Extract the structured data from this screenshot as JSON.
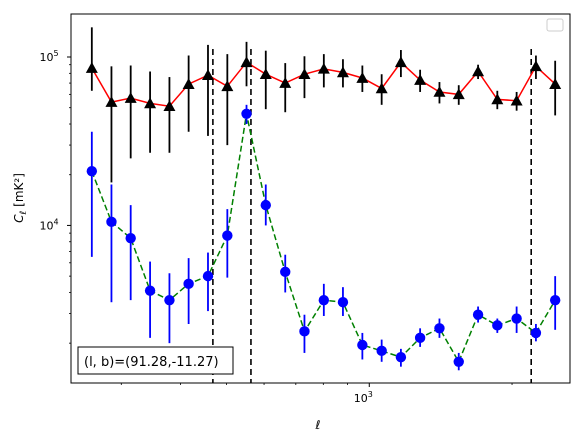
{
  "chart_data": {
    "type": "scatter",
    "xscale": "log",
    "yscale": "log",
    "xlabel": "ℓ",
    "ylabel_main": "C",
    "ylabel_sub": "ℓ",
    "ylabel_unit": "[mK²]",
    "xlim": [
      235,
      2650
    ],
    "ylim": [
      1160,
      180000
    ],
    "x_ticks": [
      {
        "value": 1000,
        "base": "10",
        "exp": "3"
      }
    ],
    "y_ticks": [
      {
        "value": 10000,
        "base": "10",
        "exp": "4"
      },
      {
        "value": 100000,
        "base": "10",
        "exp": "5"
      }
    ],
    "grid": false,
    "legend": {
      "placement": "top-right",
      "entries": []
    },
    "annotation": "(l, b)=(91.28,-11.27)",
    "vlines": [
      {
        "x": 468,
        "style": "dashed",
        "color": "#000000"
      },
      {
        "x": 563,
        "style": "dashed",
        "color": "#000000"
      },
      {
        "x": 2195,
        "style": "dashed",
        "color": "#000000"
      }
    ],
    "series": [
      {
        "line_color": "#ff0000",
        "line_style": "solid",
        "marker": "triangle",
        "marker_color": "#000000",
        "error_color": "#000000",
        "points": [
          {
            "x": 260,
            "y": 86000,
            "lo": 63000,
            "hi": 150000
          },
          {
            "x": 286,
            "y": 54000,
            "lo": 18000,
            "hi": 88000
          },
          {
            "x": 314,
            "y": 57000,
            "lo": 25000,
            "hi": 89000
          },
          {
            "x": 345,
            "y": 53000,
            "lo": 27000,
            "hi": 82000
          },
          {
            "x": 379,
            "y": 51000,
            "lo": 27000,
            "hi": 76000
          },
          {
            "x": 416,
            "y": 69000,
            "lo": 36000,
            "hi": 102000
          },
          {
            "x": 457,
            "y": 78000,
            "lo": 34000,
            "hi": 118000
          },
          {
            "x": 502,
            "y": 67000,
            "lo": 30000,
            "hi": 104000
          },
          {
            "x": 551,
            "y": 93000,
            "lo": 67000,
            "hi": 123000
          },
          {
            "x": 605,
            "y": 79000,
            "lo": 49000,
            "hi": 109000
          },
          {
            "x": 665,
            "y": 70000,
            "lo": 47000,
            "hi": 92000
          },
          {
            "x": 730,
            "y": 79000,
            "lo": 57000,
            "hi": 101000
          },
          {
            "x": 802,
            "y": 85000,
            "lo": 66000,
            "hi": 104000
          },
          {
            "x": 880,
            "y": 81000,
            "lo": 66000,
            "hi": 97000
          },
          {
            "x": 967,
            "y": 75000,
            "lo": 62000,
            "hi": 89000
          },
          {
            "x": 1062,
            "y": 65000,
            "lo": 52000,
            "hi": 79000
          },
          {
            "x": 1166,
            "y": 93000,
            "lo": 76000,
            "hi": 110000
          },
          {
            "x": 1280,
            "y": 73000,
            "lo": 62000,
            "hi": 84000
          },
          {
            "x": 1406,
            "y": 62000,
            "lo": 53000,
            "hi": 71000
          },
          {
            "x": 1544,
            "y": 60000,
            "lo": 52000,
            "hi": 68000
          },
          {
            "x": 1696,
            "y": 82000,
            "lo": 74000,
            "hi": 90000
          },
          {
            "x": 1862,
            "y": 56000,
            "lo": 49000,
            "hi": 63000
          },
          {
            "x": 2045,
            "y": 55000,
            "lo": 48000,
            "hi": 62000
          },
          {
            "x": 2246,
            "y": 88000,
            "lo": 74000,
            "hi": 102000
          },
          {
            "x": 2466,
            "y": 69000,
            "lo": 45000,
            "hi": 95000
          }
        ]
      },
      {
        "line_color": "#008000",
        "line_style": "dashed",
        "marker": "circle",
        "marker_color": "#0000ff",
        "error_color": "#0000ff",
        "points": [
          {
            "x": 260,
            "y": 21000,
            "lo": 6500,
            "hi": 36000
          },
          {
            "x": 286,
            "y": 10500,
            "lo": 3500,
            "hi": 17500
          },
          {
            "x": 314,
            "y": 8400,
            "lo": 3600,
            "hi": 13200
          },
          {
            "x": 345,
            "y": 4100,
            "lo": 2150,
            "hi": 6100
          },
          {
            "x": 379,
            "y": 3600,
            "lo": 2000,
            "hi": 5200
          },
          {
            "x": 416,
            "y": 4500,
            "lo": 2600,
            "hi": 6400
          },
          {
            "x": 457,
            "y": 5000,
            "lo": 3100,
            "hi": 6900
          },
          {
            "x": 502,
            "y": 8700,
            "lo": 4900,
            "hi": 12500
          },
          {
            "x": 551,
            "y": 46000,
            "lo": 40000,
            "hi": 52000
          },
          {
            "x": 605,
            "y": 13200,
            "lo": 10000,
            "hi": 17500
          },
          {
            "x": 665,
            "y": 5300,
            "lo": 4000,
            "hi": 6700
          },
          {
            "x": 730,
            "y": 2350,
            "lo": 1750,
            "hi": 2950
          },
          {
            "x": 802,
            "y": 3600,
            "lo": 2900,
            "hi": 4500
          },
          {
            "x": 880,
            "y": 3500,
            "lo": 2900,
            "hi": 4300
          },
          {
            "x": 967,
            "y": 1950,
            "lo": 1600,
            "hi": 2300
          },
          {
            "x": 1062,
            "y": 1800,
            "lo": 1550,
            "hi": 2100
          },
          {
            "x": 1166,
            "y": 1650,
            "lo": 1450,
            "hi": 1850
          },
          {
            "x": 1280,
            "y": 2150,
            "lo": 1900,
            "hi": 2450
          },
          {
            "x": 1406,
            "y": 2450,
            "lo": 2150,
            "hi": 2800
          },
          {
            "x": 1544,
            "y": 1550,
            "lo": 1380,
            "hi": 1750
          },
          {
            "x": 1696,
            "y": 2950,
            "lo": 2650,
            "hi": 3300
          },
          {
            "x": 1862,
            "y": 2550,
            "lo": 2300,
            "hi": 2800
          },
          {
            "x": 2045,
            "y": 2800,
            "lo": 2300,
            "hi": 3300
          },
          {
            "x": 2246,
            "y": 2300,
            "lo": 2050,
            "hi": 2600
          },
          {
            "x": 2466,
            "y": 3600,
            "lo": 2400,
            "hi": 5000
          }
        ]
      }
    ]
  }
}
